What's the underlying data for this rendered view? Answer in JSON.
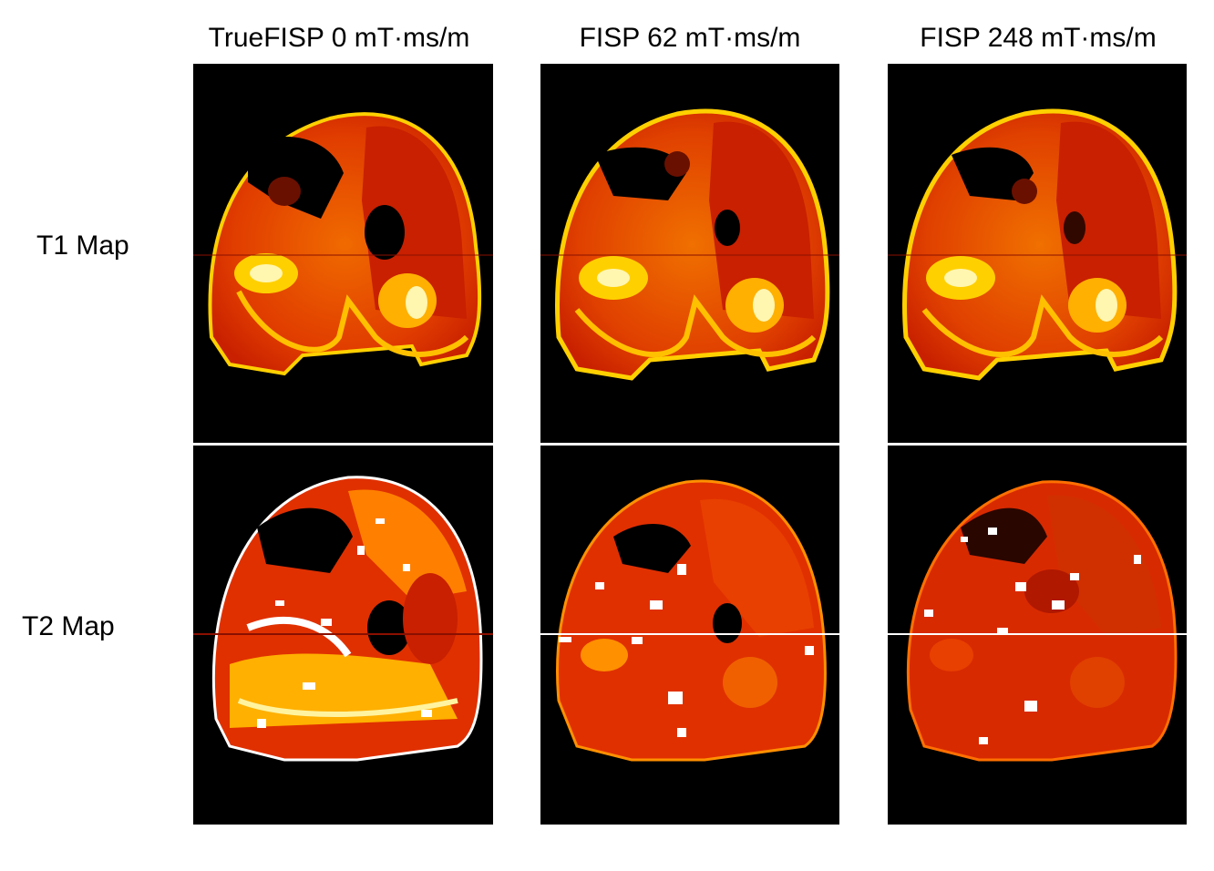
{
  "columns": [
    {
      "title": "TrueFISP 0 mT·ms/m"
    },
    {
      "title": "FISP 62 mT·ms/m"
    },
    {
      "title": "FISP 248 mT·ms/m"
    }
  ],
  "rows": [
    {
      "label": "T1 Map"
    },
    {
      "label": "T2 Map"
    }
  ],
  "colors": {
    "background": "#000000",
    "deep_red": "#b81800",
    "red": "#e03000",
    "orange": "#f06000",
    "yellow": "#ffd000",
    "white": "#ffffff"
  }
}
